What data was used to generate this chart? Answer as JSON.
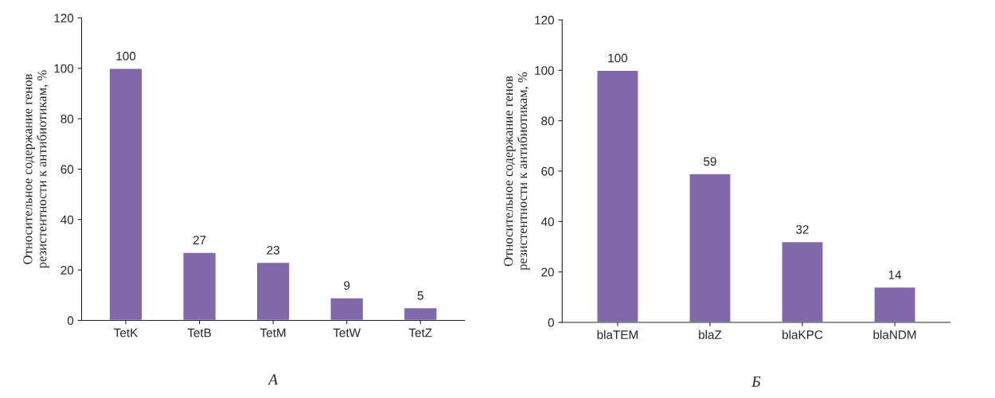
{
  "chart_data": [
    {
      "type": "bar",
      "categories": [
        "TetK",
        "TetB",
        "TetM",
        "TetW",
        "TetZ"
      ],
      "values": [
        100,
        27,
        23,
        9,
        5
      ],
      "color": "#8068ab",
      "ylim": [
        0,
        120
      ],
      "yticks": [
        0,
        20,
        40,
        60,
        80,
        100,
        120
      ],
      "ylabel": "Относительное содержание генов\nрезистентности к антибиотикам, %",
      "data_labels": true,
      "grid": false,
      "annotations": [
        "А"
      ]
    },
    {
      "type": "bar",
      "categories": [
        "blaTEM",
        "blaZ",
        "blaKPC",
        "blaNDM"
      ],
      "values": [
        100,
        59,
        32,
        14
      ],
      "color": "#8068ab",
      "ylim": [
        0,
        120
      ],
      "yticks": [
        0,
        20,
        40,
        60,
        80,
        100,
        120
      ],
      "ylabel": "Относительное содержание генов\nрезистентности к антибиотикам, %",
      "data_labels": true,
      "grid": false,
      "annotations": [
        "Б"
      ]
    }
  ]
}
